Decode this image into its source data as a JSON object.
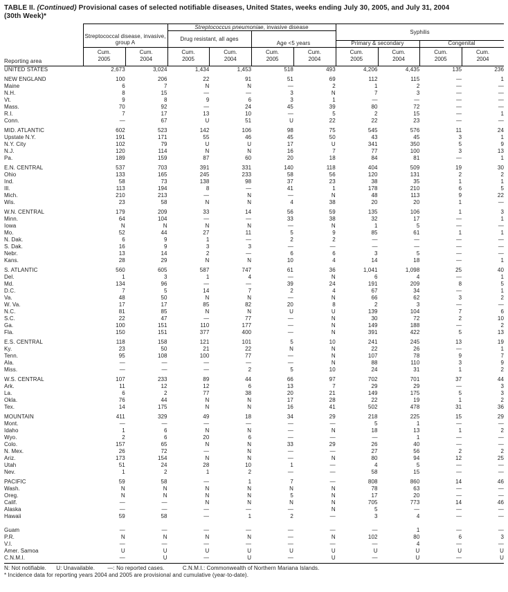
{
  "title": {
    "part1": "TABLE II. ",
    "part2": "(Continued) ",
    "part3": "Provisional cases of selected notifiable diseases, United States, weeks ending July 30, 2005, and July 31, 2004",
    "line2": "(30th Week)*"
  },
  "header": {
    "reporting_area": "Reporting area",
    "group_a": "Streptococcal disease, invasive, group A",
    "pneumoniae_italic": "Streptococcus pneumoniae",
    "pneumoniae_rest": ", invasive disease",
    "drug_resistant": "Drug resistant, all ages",
    "age_under_5": "Age <5 years",
    "syphilis": "Syphilis",
    "primary_secondary": "Primary & secondary",
    "congenital": "Congenital",
    "cum": "Cum.",
    "years": [
      "2005",
      "2004",
      "2005",
      "2004",
      "2005",
      "2004",
      "2005",
      "2004",
      "2005",
      "2004"
    ]
  },
  "sections": [
    {
      "rows": [
        {
          "label": "UNITED STATES",
          "values": [
            "2,673",
            "3,024",
            "1,434",
            "1,453",
            "518",
            "493",
            "4,206",
            "4,435",
            "135",
            "236"
          ]
        }
      ]
    },
    {
      "rows": [
        {
          "label": "NEW ENGLAND",
          "values": [
            "100",
            "206",
            "22",
            "91",
            "51",
            "69",
            "112",
            "115",
            "—",
            "1"
          ]
        },
        {
          "label": "Maine",
          "values": [
            "6",
            "7",
            "N",
            "N",
            "—",
            "2",
            "1",
            "2",
            "—",
            "—"
          ]
        },
        {
          "label": "N.H.",
          "values": [
            "8",
            "15",
            "—",
            "—",
            "3",
            "N",
            "7",
            "3",
            "—",
            "—"
          ]
        },
        {
          "label": "Vt.",
          "values": [
            "9",
            "8",
            "9",
            "6",
            "3",
            "1",
            "—",
            "—",
            "—",
            "—"
          ]
        },
        {
          "label": "Mass.",
          "values": [
            "70",
            "92",
            "—",
            "24",
            "45",
            "39",
            "80",
            "72",
            "—",
            "—"
          ]
        },
        {
          "label": "R.I.",
          "values": [
            "7",
            "17",
            "13",
            "10",
            "—",
            "5",
            "2",
            "15",
            "—",
            "1"
          ]
        },
        {
          "label": "Conn.",
          "values": [
            "—",
            "67",
            "U",
            "51",
            "U",
            "22",
            "22",
            "23",
            "—",
            "—"
          ]
        }
      ]
    },
    {
      "rows": [
        {
          "label": "MID. ATLANTIC",
          "values": [
            "602",
            "523",
            "142",
            "106",
            "98",
            "75",
            "545",
            "576",
            "11",
            "24"
          ]
        },
        {
          "label": "Upstate N.Y.",
          "values": [
            "191",
            "171",
            "55",
            "46",
            "45",
            "50",
            "43",
            "45",
            "3",
            "1"
          ]
        },
        {
          "label": "N.Y. City",
          "values": [
            "102",
            "79",
            "U",
            "U",
            "17",
            "U",
            "341",
            "350",
            "5",
            "9"
          ]
        },
        {
          "label": "N.J.",
          "values": [
            "120",
            "114",
            "N",
            "N",
            "16",
            "7",
            "77",
            "100",
            "3",
            "13"
          ]
        },
        {
          "label": "Pa.",
          "values": [
            "189",
            "159",
            "87",
            "60",
            "20",
            "18",
            "84",
            "81",
            "—",
            "1"
          ]
        }
      ]
    },
    {
      "rows": [
        {
          "label": "E.N. CENTRAL",
          "values": [
            "537",
            "703",
            "391",
            "331",
            "140",
            "118",
            "404",
            "509",
            "19",
            "30"
          ]
        },
        {
          "label": "Ohio",
          "values": [
            "133",
            "165",
            "245",
            "233",
            "58",
            "56",
            "120",
            "131",
            "2",
            "2"
          ]
        },
        {
          "label": "Ind.",
          "values": [
            "58",
            "73",
            "138",
            "98",
            "37",
            "23",
            "38",
            "35",
            "1",
            "1"
          ]
        },
        {
          "label": "Ill.",
          "values": [
            "113",
            "194",
            "8",
            "—",
            "41",
            "1",
            "178",
            "210",
            "6",
            "5"
          ]
        },
        {
          "label": "Mich.",
          "values": [
            "210",
            "213",
            "—",
            "N",
            "—",
            "N",
            "48",
            "113",
            "9",
            "22"
          ]
        },
        {
          "label": "Wis.",
          "values": [
            "23",
            "58",
            "N",
            "N",
            "4",
            "38",
            "20",
            "20",
            "1",
            "—"
          ]
        }
      ]
    },
    {
      "rows": [
        {
          "label": "W.N. CENTRAL",
          "values": [
            "179",
            "209",
            "33",
            "14",
            "56",
            "59",
            "135",
            "106",
            "1",
            "3"
          ]
        },
        {
          "label": "Minn.",
          "values": [
            "64",
            "104",
            "—",
            "—",
            "33",
            "38",
            "32",
            "17",
            "—",
            "1"
          ]
        },
        {
          "label": "Iowa",
          "values": [
            "N",
            "N",
            "N",
            "N",
            "—",
            "N",
            "1",
            "5",
            "—",
            "—"
          ]
        },
        {
          "label": "Mo.",
          "values": [
            "52",
            "44",
            "27",
            "11",
            "5",
            "9",
            "85",
            "61",
            "1",
            "1"
          ]
        },
        {
          "label": "N. Dak.",
          "values": [
            "6",
            "9",
            "1",
            "—",
            "2",
            "2",
            "—",
            "—",
            "—",
            "—"
          ]
        },
        {
          "label": "S. Dak.",
          "values": [
            "16",
            "9",
            "3",
            "3",
            "—",
            "—",
            "—",
            "—",
            "—",
            "—"
          ]
        },
        {
          "label": "Nebr.",
          "values": [
            "13",
            "14",
            "2",
            "—",
            "6",
            "6",
            "3",
            "5",
            "—",
            "—"
          ]
        },
        {
          "label": "Kans.",
          "values": [
            "28",
            "29",
            "N",
            "N",
            "10",
            "4",
            "14",
            "18",
            "—",
            "1"
          ]
        }
      ]
    },
    {
      "rows": [
        {
          "label": "S. ATLANTIC",
          "values": [
            "560",
            "605",
            "587",
            "747",
            "61",
            "36",
            "1,041",
            "1,098",
            "25",
            "40"
          ]
        },
        {
          "label": "Del.",
          "values": [
            "1",
            "3",
            "1",
            "4",
            "—",
            "N",
            "6",
            "4",
            "—",
            "1"
          ]
        },
        {
          "label": "Md.",
          "values": [
            "134",
            "96",
            "—",
            "—",
            "39",
            "24",
            "191",
            "209",
            "8",
            "5"
          ]
        },
        {
          "label": "D.C.",
          "values": [
            "7",
            "5",
            "14",
            "7",
            "2",
            "4",
            "67",
            "34",
            "—",
            "1"
          ]
        },
        {
          "label": "Va.",
          "values": [
            "48",
            "50",
            "N",
            "N",
            "—",
            "N",
            "66",
            "62",
            "3",
            "2"
          ]
        },
        {
          "label": "W. Va.",
          "values": [
            "17",
            "17",
            "85",
            "82",
            "20",
            "8",
            "2",
            "3",
            "—",
            "—"
          ]
        },
        {
          "label": "N.C.",
          "values": [
            "81",
            "85",
            "N",
            "N",
            "U",
            "U",
            "139",
            "104",
            "7",
            "6"
          ]
        },
        {
          "label": "S.C.",
          "values": [
            "22",
            "47",
            "—",
            "77",
            "—",
            "N",
            "30",
            "72",
            "2",
            "10"
          ]
        },
        {
          "label": "Ga.",
          "values": [
            "100",
            "151",
            "110",
            "177",
            "—",
            "N",
            "149",
            "188",
            "—",
            "2"
          ]
        },
        {
          "label": "Fla.",
          "values": [
            "150",
            "151",
            "377",
            "400",
            "—",
            "N",
            "391",
            "422",
            "5",
            "13"
          ]
        }
      ]
    },
    {
      "rows": [
        {
          "label": "E.S. CENTRAL",
          "values": [
            "118",
            "158",
            "121",
            "101",
            "5",
            "10",
            "241",
            "245",
            "13",
            "19"
          ]
        },
        {
          "label": "Ky.",
          "values": [
            "23",
            "50",
            "21",
            "22",
            "N",
            "N",
            "22",
            "26",
            "—",
            "1"
          ]
        },
        {
          "label": "Tenn.",
          "values": [
            "95",
            "108",
            "100",
            "77",
            "—",
            "N",
            "107",
            "78",
            "9",
            "7"
          ]
        },
        {
          "label": "Ala.",
          "values": [
            "—",
            "—",
            "—",
            "—",
            "—",
            "N",
            "88",
            "110",
            "3",
            "9"
          ]
        },
        {
          "label": "Miss.",
          "values": [
            "—",
            "—",
            "—",
            "2",
            "5",
            "10",
            "24",
            "31",
            "1",
            "2"
          ]
        }
      ]
    },
    {
      "rows": [
        {
          "label": "W.S. CENTRAL",
          "values": [
            "107",
            "233",
            "89",
            "44",
            "66",
            "97",
            "702",
            "701",
            "37",
            "44"
          ]
        },
        {
          "label": "Ark.",
          "values": [
            "11",
            "12",
            "12",
            "6",
            "13",
            "7",
            "29",
            "29",
            "—",
            "3"
          ]
        },
        {
          "label": "La.",
          "values": [
            "6",
            "2",
            "77",
            "38",
            "20",
            "21",
            "149",
            "175",
            "5",
            "3"
          ]
        },
        {
          "label": "Okla.",
          "values": [
            "76",
            "44",
            "N",
            "N",
            "17",
            "28",
            "22",
            "19",
            "1",
            "2"
          ]
        },
        {
          "label": "Tex.",
          "values": [
            "14",
            "175",
            "N",
            "N",
            "16",
            "41",
            "502",
            "478",
            "31",
            "36"
          ]
        }
      ]
    },
    {
      "rows": [
        {
          "label": "MOUNTAIN",
          "values": [
            "411",
            "329",
            "49",
            "18",
            "34",
            "29",
            "218",
            "225",
            "15",
            "29"
          ]
        },
        {
          "label": "Mont.",
          "values": [
            "—",
            "—",
            "—",
            "—",
            "—",
            "—",
            "5",
            "1",
            "—",
            "—"
          ]
        },
        {
          "label": "Idaho",
          "values": [
            "1",
            "6",
            "N",
            "N",
            "—",
            "N",
            "18",
            "13",
            "1",
            "2"
          ]
        },
        {
          "label": "Wyo.",
          "values": [
            "2",
            "6",
            "20",
            "6",
            "—",
            "—",
            "—",
            "1",
            "—",
            "—"
          ]
        },
        {
          "label": "Colo.",
          "values": [
            "157",
            "65",
            "N",
            "N",
            "33",
            "29",
            "26",
            "40",
            "—",
            "—"
          ]
        },
        {
          "label": "N. Mex.",
          "values": [
            "26",
            "72",
            "—",
            "N",
            "—",
            "—",
            "27",
            "56",
            "2",
            "2"
          ]
        },
        {
          "label": "Ariz.",
          "values": [
            "173",
            "154",
            "N",
            "N",
            "—",
            "N",
            "80",
            "94",
            "12",
            "25"
          ]
        },
        {
          "label": "Utah",
          "values": [
            "51",
            "24",
            "28",
            "10",
            "1",
            "—",
            "4",
            "5",
            "—",
            "—"
          ]
        },
        {
          "label": "Nev.",
          "values": [
            "1",
            "2",
            "1",
            "2",
            "—",
            "—",
            "58",
            "15",
            "—",
            "—"
          ]
        }
      ]
    },
    {
      "rows": [
        {
          "label": "PACIFIC",
          "values": [
            "59",
            "58",
            "—",
            "1",
            "7",
            "—",
            "808",
            "860",
            "14",
            "46"
          ]
        },
        {
          "label": "Wash.",
          "values": [
            "N",
            "N",
            "N",
            "N",
            "N",
            "N",
            "78",
            "63",
            "—",
            "—"
          ]
        },
        {
          "label": "Oreg.",
          "values": [
            "N",
            "N",
            "N",
            "N",
            "5",
            "N",
            "17",
            "20",
            "—",
            "—"
          ]
        },
        {
          "label": "Calif.",
          "values": [
            "—",
            "—",
            "N",
            "N",
            "N",
            "N",
            "705",
            "773",
            "14",
            "46"
          ]
        },
        {
          "label": "Alaska",
          "values": [
            "—",
            "—",
            "—",
            "—",
            "—",
            "N",
            "5",
            "—",
            "—",
            "—"
          ]
        },
        {
          "label": "Hawaii",
          "values": [
            "59",
            "58",
            "—",
            "1",
            "2",
            "—",
            "3",
            "4",
            "—",
            "—"
          ]
        }
      ]
    },
    {
      "territory": true,
      "rows": [
        {
          "label": "Guam",
          "values": [
            "—",
            "—",
            "—",
            "—",
            "—",
            "—",
            "—",
            "1",
            "—",
            "—"
          ]
        },
        {
          "label": "P.R.",
          "values": [
            "N",
            "N",
            "N",
            "N",
            "—",
            "N",
            "102",
            "80",
            "6",
            "3"
          ]
        },
        {
          "label": "V.I.",
          "values": [
            "—",
            "—",
            "—",
            "—",
            "—",
            "—",
            "—",
            "4",
            "—",
            "—"
          ]
        },
        {
          "label": "Amer. Samoa",
          "values": [
            "U",
            "U",
            "U",
            "U",
            "U",
            "U",
            "U",
            "U",
            "U",
            "U"
          ]
        },
        {
          "label": "C.N.M.I.",
          "values": [
            "—",
            "U",
            "—",
            "U",
            "—",
            "U",
            "—",
            "U",
            "—",
            "U"
          ]
        }
      ]
    }
  ],
  "footnotes": {
    "legend": [
      "N: Not notifiable.",
      "U: Unavailable.",
      "—: No reported cases.",
      "C.N.M.I.: Commonwealth of Northern Mariana Islands."
    ],
    "star": "* Incidence data for reporting years 2004 and 2005 are provisional and cumulative (year-to-date)."
  }
}
